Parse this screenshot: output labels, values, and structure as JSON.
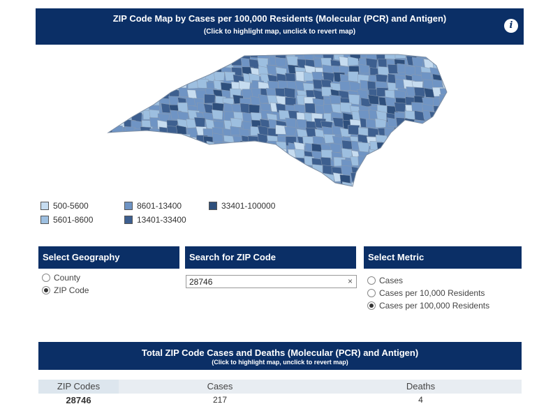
{
  "map_header": {
    "title": "ZIP Code Map by Cases per 100,000 Residents (Molecular (PCR) and Antigen)",
    "subtitle": "(Click to highlight map, unclick to revert map)",
    "info_icon": "i"
  },
  "legend": [
    {
      "label": "500-5600",
      "color": "#c6dcf0"
    },
    {
      "label": "5601-8600",
      "color": "#9dbfe0"
    },
    {
      "label": "8601-13400",
      "color": "#6f94c4"
    },
    {
      "label": "13401-33400",
      "color": "#3d5f8f"
    },
    {
      "label": "33401-100000",
      "color": "#2e4f7c"
    }
  ],
  "geography": {
    "heading": "Select Geography",
    "options": [
      "County",
      "ZIP Code"
    ],
    "selected": "ZIP Code"
  },
  "search": {
    "heading": "Search for ZIP Code",
    "value": "28746",
    "clear_icon": "×"
  },
  "metric": {
    "heading": "Select Metric",
    "options": [
      "Cases",
      "Cases per 10,000 Residents",
      "Cases per 100,000 Residents"
    ],
    "selected": "Cases per 100,000 Residents"
  },
  "table": {
    "title": "Total ZIP Code Cases and Deaths (Molecular (PCR) and Antigen)",
    "subtitle": "(Click to highlight map, unclick to revert map)",
    "columns": [
      "ZIP Codes",
      "Cases",
      "Deaths"
    ],
    "rows": [
      {
        "zip": "28746",
        "cases": "217",
        "deaths": "4"
      }
    ]
  }
}
